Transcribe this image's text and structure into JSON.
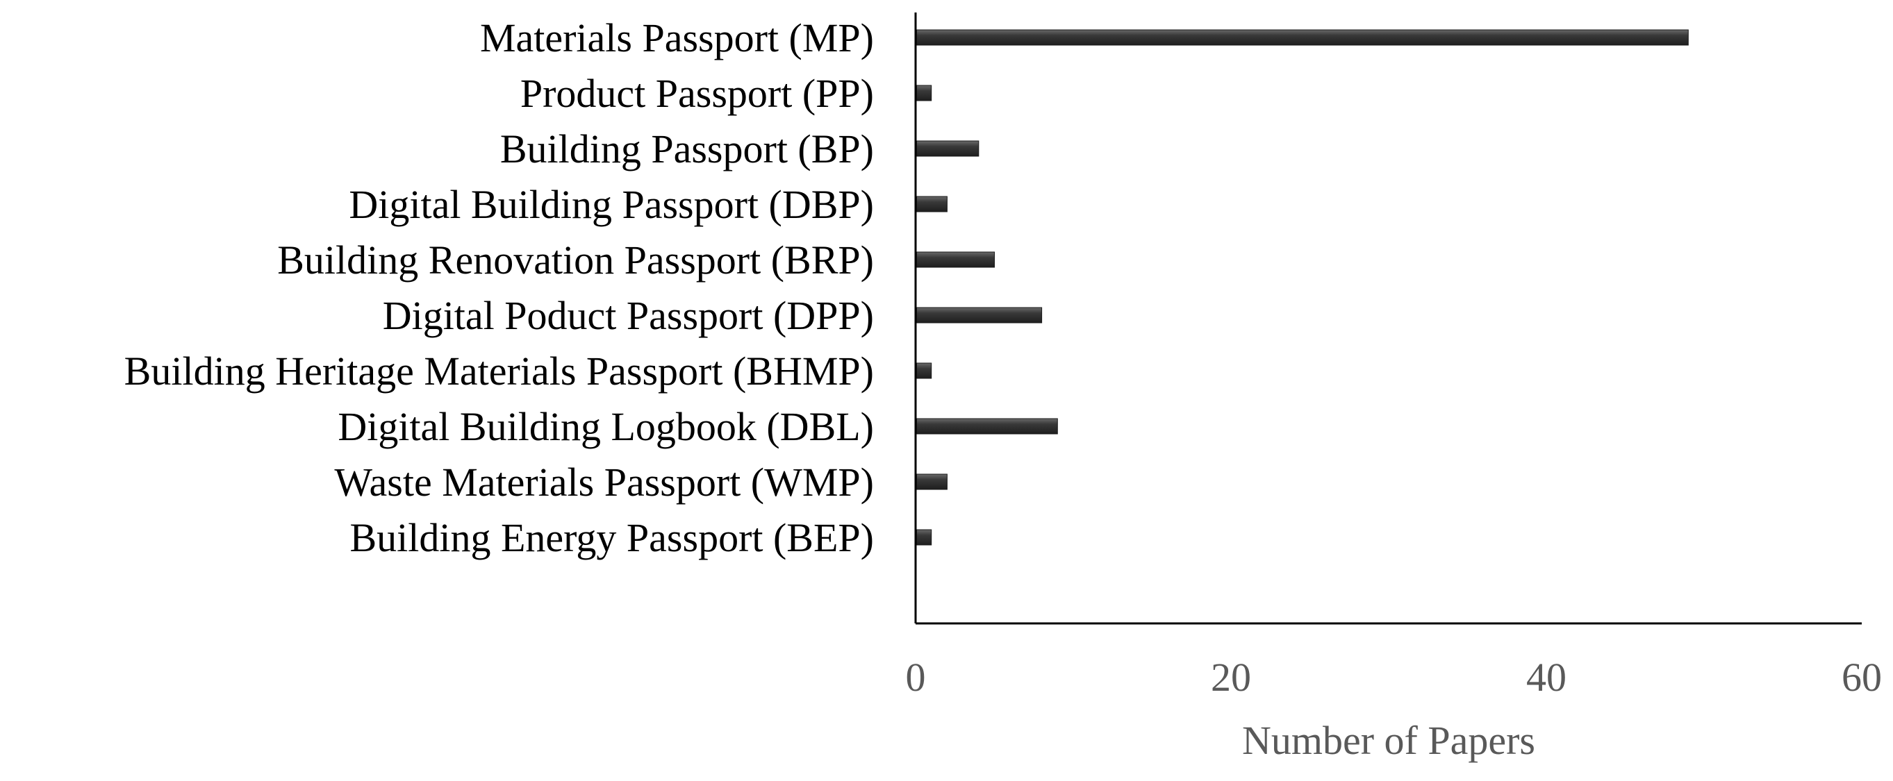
{
  "chart_data": {
    "type": "bar",
    "orientation": "horizontal",
    "categories": [
      "Materials Passport (MP)",
      "Product Passport (PP)",
      "Building Passport (BP)",
      "Digital Building Passport (DBP)",
      "Building Renovation Passport (BRP)",
      "Digital Poduct Passport (DPP)",
      "Building Heritage Materials Passport (BHMP)",
      "Digital Building Logbook (DBL)",
      "Waste Materials Passport (WMP)",
      "Building Energy Passport (BEP)"
    ],
    "values": [
      49,
      1,
      4,
      2,
      5,
      8,
      1,
      9,
      2,
      1
    ],
    "xlabel": "Number of Papers",
    "ylabel": "",
    "xlim": [
      0,
      60
    ],
    "xticks": [
      "0",
      "20",
      "40",
      "60"
    ],
    "grid": false,
    "bar_color": "#3a3a3a"
  }
}
